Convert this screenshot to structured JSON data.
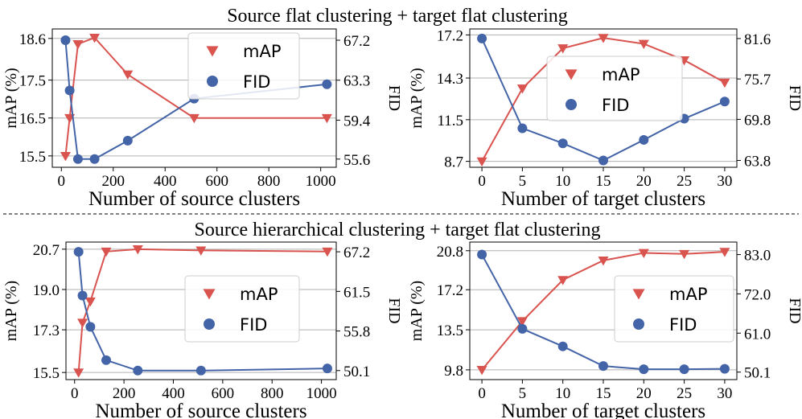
{
  "section_titles": [
    "Source flat clustering + target flat clustering",
    "Source hierarchical clustering + target flat clustering"
  ],
  "colors": {
    "map": "#d9534f",
    "fid": "#4464a8",
    "grid": "#b0b0b0",
    "legend_border": "#cccccc"
  },
  "chart_data": [
    {
      "type": "line",
      "title": "",
      "xlabel": "Number of source clusters",
      "ylabel_left": "mAP (%)",
      "ylabel_right": "FID",
      "xlim": [
        -35,
        1060
      ],
      "xticks": [
        0,
        200,
        400,
        600,
        800,
        1000
      ],
      "xtick_labels": [
        "0",
        "200",
        "400",
        "600",
        "800",
        "1000"
      ],
      "ylim_left": [
        15.2,
        18.85
      ],
      "yticks_left": [
        15.5,
        16.5,
        17.5,
        18.6
      ],
      "ytick_labels_left": [
        "15.5",
        "16.5",
        "17.5",
        "18.6"
      ],
      "ylim_right": [
        54.8,
        68.3
      ],
      "yticks_right": [
        55.6,
        59.4,
        63.3,
        67.2
      ],
      "ytick_labels_right": [
        "55.6",
        "59.4",
        "63.3",
        "67.2"
      ],
      "legend": "upper-center-right",
      "x": [
        16,
        32,
        64,
        128,
        256,
        512,
        1024
      ],
      "series": [
        {
          "name": "mAP",
          "axis": "left",
          "marker": "triangle-down",
          "values": [
            15.5,
            16.5,
            18.45,
            18.62,
            17.65,
            16.5,
            16.5
          ]
        },
        {
          "name": "FID",
          "axis": "right",
          "marker": "circle",
          "values": [
            67.2,
            62.3,
            55.6,
            55.6,
            57.4,
            61.5,
            62.9
          ]
        }
      ]
    },
    {
      "type": "line",
      "title": "",
      "xlabel": "Number of target clusters",
      "ylabel_left": "mAP (%)",
      "ylabel_right": "FID",
      "xlim": [
        -1.5,
        31.5
      ],
      "xticks": [
        0,
        5,
        10,
        15,
        20,
        25,
        30
      ],
      "xtick_labels": [
        "0",
        "5",
        "10",
        "15",
        "20",
        "25",
        "30"
      ],
      "ylim_left": [
        8.3,
        17.6
      ],
      "yticks_left": [
        8.7,
        11.5,
        14.3,
        17.2
      ],
      "ytick_labels_left": [
        "8.7",
        "11.5",
        "14.3",
        "17.2"
      ],
      "ylim_right": [
        62.8,
        83.0
      ],
      "yticks_right": [
        63.8,
        69.8,
        75.7,
        81.6
      ],
      "ytick_labels_right": [
        "63.8",
        "69.8",
        "75.7",
        "81.6"
      ],
      "legend": "center",
      "x": [
        0,
        5,
        10,
        15,
        20,
        25,
        30
      ],
      "series": [
        {
          "name": "mAP",
          "axis": "left",
          "marker": "triangle-down",
          "values": [
            8.7,
            13.6,
            16.3,
            17.0,
            16.6,
            15.5,
            14.0
          ]
        },
        {
          "name": "FID",
          "axis": "right",
          "marker": "circle",
          "values": [
            81.6,
            68.5,
            66.3,
            63.8,
            66.8,
            69.9,
            72.4
          ]
        }
      ]
    },
    {
      "type": "line",
      "title": "",
      "xlabel": "Number of source clusters",
      "ylabel_left": "mAP (%)",
      "ylabel_right": "FID",
      "xlim": [
        -35,
        1060
      ],
      "xticks": [
        0,
        200,
        400,
        600,
        800,
        1000
      ],
      "xtick_labels": [
        "0",
        "200",
        "400",
        "600",
        "800",
        "1000"
      ],
      "ylim_left": [
        15.2,
        21.0
      ],
      "yticks_left": [
        15.5,
        17.3,
        19.0,
        20.7
      ],
      "ytick_labels_left": [
        "15.5",
        "17.3",
        "19.0",
        "20.7"
      ],
      "ylim_right": [
        48.8,
        68.6
      ],
      "yticks_right": [
        50.1,
        55.8,
        61.5,
        67.2
      ],
      "ytick_labels_right": [
        "50.1",
        "55.8",
        "61.5",
        "67.2"
      ],
      "legend": "center-right",
      "x": [
        16,
        32,
        64,
        128,
        256,
        512,
        1024
      ],
      "series": [
        {
          "name": "mAP",
          "axis": "left",
          "marker": "triangle-down",
          "values": [
            15.5,
            17.6,
            18.5,
            20.6,
            20.7,
            20.65,
            20.6
          ]
        },
        {
          "name": "FID",
          "axis": "right",
          "marker": "circle",
          "values": [
            67.2,
            60.9,
            56.4,
            51.6,
            50.1,
            50.1,
            50.4
          ]
        }
      ]
    },
    {
      "type": "line",
      "title": "",
      "xlabel": "Number of target clusters",
      "ylabel_left": "mAP (%)",
      "ylabel_right": "FID",
      "xlim": [
        -1.5,
        31.5
      ],
      "xticks": [
        0,
        5,
        10,
        15,
        20,
        25,
        30
      ],
      "xtick_labels": [
        "0",
        "5",
        "10",
        "15",
        "20",
        "25",
        "30"
      ],
      "ylim_left": [
        8.9,
        21.6
      ],
      "yticks_left": [
        9.8,
        13.5,
        17.2,
        20.8
      ],
      "ytick_labels_left": [
        "9.8",
        "13.5",
        "17.2",
        "20.8"
      ],
      "ylim_right": [
        48.0,
        86.5
      ],
      "yticks_right": [
        50.1,
        61.0,
        72.0,
        83.0
      ],
      "ytick_labels_right": [
        "50.1",
        "61.0",
        "72.0",
        "83.0"
      ],
      "legend": "center-right",
      "x": [
        0,
        5,
        10,
        15,
        20,
        25,
        30
      ],
      "series": [
        {
          "name": "mAP",
          "axis": "left",
          "marker": "triangle-down",
          "values": [
            9.8,
            14.3,
            18.1,
            19.9,
            20.6,
            20.5,
            20.7
          ]
        },
        {
          "name": "FID",
          "axis": "right",
          "marker": "circle",
          "values": [
            83.0,
            62.2,
            57.3,
            51.8,
            50.9,
            50.9,
            51.0
          ]
        }
      ]
    }
  ]
}
